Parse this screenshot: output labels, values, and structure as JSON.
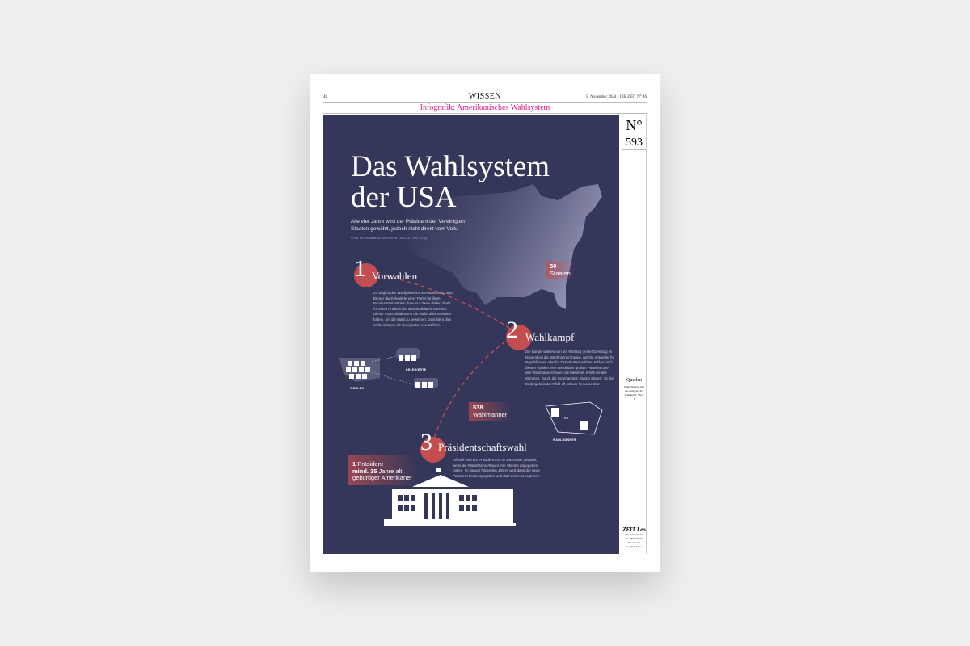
{
  "header": {
    "page_number": "48",
    "section": "WISSEN",
    "date_issue": "5. November 2024 · DIE ZEIT N° 46",
    "kicker": "Infografik: Amerikanisches Wahlsystem"
  },
  "infographic": {
    "title_line1": "Das Wahlsystem",
    "title_line2": "der USA",
    "lead": "Alle vier Jahre wird der Präsident der Vereinigten Staaten gewählt, jedoch nicht direkt vom Volk.",
    "byline": "VON MOHAMMAD IBRAHIM (ILLUSTRATION)",
    "states_box": {
      "number": "50",
      "label": "Staaten"
    },
    "steps": [
      {
        "number": "1",
        "title": "Vorwahlen",
        "text": "Zu Beginn des Wahljahres können wahlberechtigte Bürger die Delegierte einer Partei für ihren Bundesstaat wählen, bzw. nur diese dürfen direkt für einen Präsidentschaftskandidaten stimmen. Dieser muss mindestens die Hälfte aller Stimmen haben, um die Wahl zu gewinnen. Geschieht dies nicht, müssen die Delegierten neu wählen."
      },
      {
        "number": "2",
        "title": "Wahlkampf",
        "text": "Die Bürger wählen nun am Wahltag (erster Dienstag im November) die Wahlmänner/frauen, welche entweder für Republikaner oder für Demokraten wählen. Bilden nach diesen Wahlen eine der beiden großen Parteien unter den Wahlmänner/frauen die Mehrheit, erhält sie alle Stimmen. Durch die sogenannten „Swing States“, ist das Endergebnis der Wahl oft schwer hervorsehbar."
      },
      {
        "number": "3",
        "title": "Präsidentschaftswahl",
        "text": "Offiziell wird der Präsident erst im Dezember gewählt, wenn die Wahlmänner/frauen ihre Stimme abgegeben haben. Im Januar folgenden Jahres wird dann der neue Präsident bekanntgegeben und darf sein Amt beginnen."
      }
    ],
    "electors_box": {
      "number": "538",
      "label": "Wahlmänner"
    },
    "president_box": {
      "line1_bold": "1",
      "line1": " Präsident",
      "line2_bold": "mind. 35",
      "line2": " Jahre alt",
      "line3": "gebürtiger Amerikaner"
    },
    "labels": {
      "voters": "WÄHLER",
      "delegates": "DELEGIERTE",
      "electors": "WAHLMÄNNER",
      "vs": "VS"
    }
  },
  "sidebar": {
    "no_symbol": "N°",
    "number": "593",
    "sources_title": "Quellen",
    "sources_text": "bitget/Statista unsafe.com/bot ch/?v=jDkowC 55s/7f",
    "logo": "ZEIT Leo",
    "logo_text": "Die Kinderseite der ZEIT finden Sie auf der vorigen Seite"
  },
  "colors": {
    "panel": "#35375a",
    "accent": "#c44d50",
    "kicker": "#e0218a"
  }
}
